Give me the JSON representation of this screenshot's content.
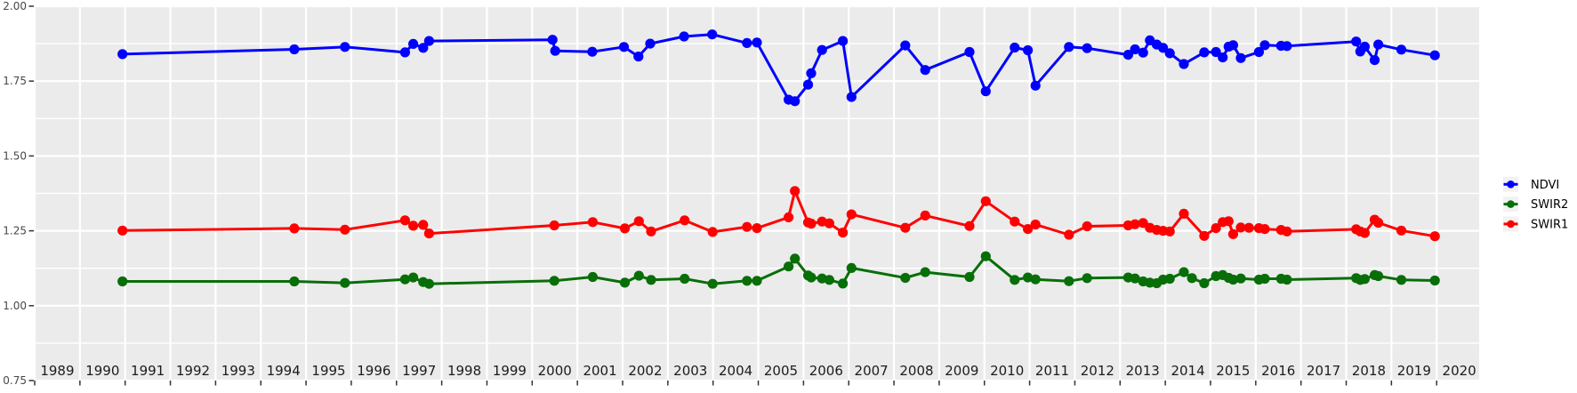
{
  "chart_data": {
    "type": "line",
    "title": "",
    "xlabel": "",
    "ylabel": "",
    "x_range": [
      1988.98,
      2020.94
    ],
    "y_range": [
      0.75,
      2.0
    ],
    "x_ticks_years": [
      1989,
      1990,
      1991,
      1992,
      1993,
      1994,
      1995,
      1996,
      1997,
      1998,
      1999,
      2000,
      2001,
      2002,
      2003,
      2004,
      2005,
      2006,
      2007,
      2008,
      2009,
      2010,
      2011,
      2012,
      2013,
      2014,
      2015,
      2016,
      2017,
      2018,
      2019,
      2020
    ],
    "x_tick_label_offset": 0.5,
    "y_ticks": [
      0.75,
      1.0,
      1.25,
      1.5,
      1.75,
      2.0
    ],
    "y_minor_ticks": [
      0.875,
      1.125,
      1.375,
      1.625,
      1.875
    ],
    "grid": true,
    "legend_position": "right",
    "panel_bg": "#ebebeb",
    "grid_color": "#ffffff",
    "tick_color": "#333333",
    "legend_key_bg": "#f2f2f2",
    "series": [
      {
        "name": "NDVI",
        "color": "#0000ff",
        "points": [
          [
            1990.94,
            1.84
          ],
          [
            1994.74,
            1.856
          ],
          [
            1995.86,
            1.864
          ],
          [
            1997.19,
            1.846
          ],
          [
            1997.37,
            1.874
          ],
          [
            1997.59,
            1.861
          ],
          [
            1997.72,
            1.884
          ],
          [
            2000.45,
            1.888
          ],
          [
            2000.51,
            1.851
          ],
          [
            2001.33,
            1.848
          ],
          [
            2002.03,
            1.864
          ],
          [
            2002.35,
            1.832
          ],
          [
            2002.61,
            1.875
          ],
          [
            2003.36,
            1.899
          ],
          [
            2003.98,
            1.906
          ],
          [
            2004.75,
            1.877
          ],
          [
            2004.97,
            1.879
          ],
          [
            2005.67,
            1.688
          ],
          [
            2005.81,
            1.683
          ],
          [
            2006.1,
            1.738
          ],
          [
            2006.17,
            1.776
          ],
          [
            2006.41,
            1.854
          ],
          [
            2006.87,
            1.884
          ],
          [
            2007.06,
            1.697
          ],
          [
            2008.25,
            1.869
          ],
          [
            2008.69,
            1.787
          ],
          [
            2009.67,
            1.847
          ],
          [
            2010.03,
            1.716
          ],
          [
            2010.67,
            1.862
          ],
          [
            2010.96,
            1.853
          ],
          [
            2011.13,
            1.735
          ],
          [
            2011.87,
            1.864
          ],
          [
            2012.27,
            1.86
          ],
          [
            2013.18,
            1.838
          ],
          [
            2013.33,
            1.856
          ],
          [
            2013.51,
            1.845
          ],
          [
            2013.66,
            1.886
          ],
          [
            2013.81,
            1.872
          ],
          [
            2013.95,
            1.861
          ],
          [
            2014.1,
            1.843
          ],
          [
            2014.41,
            1.807
          ],
          [
            2014.86,
            1.846
          ],
          [
            2015.12,
            1.847
          ],
          [
            2015.27,
            1.829
          ],
          [
            2015.4,
            1.865
          ],
          [
            2015.5,
            1.87
          ],
          [
            2015.67,
            1.827
          ],
          [
            2016.07,
            1.847
          ],
          [
            2016.2,
            1.87
          ],
          [
            2016.56,
            1.868
          ],
          [
            2016.69,
            1.867
          ],
          [
            2018.22,
            1.882
          ],
          [
            2018.31,
            1.849
          ],
          [
            2018.41,
            1.865
          ],
          [
            2018.63,
            1.82
          ],
          [
            2018.71,
            1.872
          ],
          [
            2019.22,
            1.855
          ],
          [
            2019.96,
            1.836
          ]
        ]
      },
      {
        "name": "SWIR2",
        "color": "#086e08",
        "points": [
          [
            1990.94,
            1.081
          ],
          [
            1994.74,
            1.081
          ],
          [
            1995.86,
            1.076
          ],
          [
            1997.19,
            1.088
          ],
          [
            1997.37,
            1.094
          ],
          [
            1997.59,
            1.079
          ],
          [
            1997.72,
            1.073
          ],
          [
            2000.49,
            1.083
          ],
          [
            2001.34,
            1.096
          ],
          [
            2002.05,
            1.077
          ],
          [
            2002.36,
            1.1
          ],
          [
            2002.63,
            1.086
          ],
          [
            2003.37,
            1.09
          ],
          [
            2003.99,
            1.073
          ],
          [
            2004.75,
            1.083
          ],
          [
            2004.97,
            1.083
          ],
          [
            2005.67,
            1.131
          ],
          [
            2005.81,
            1.157
          ],
          [
            2006.1,
            1.101
          ],
          [
            2006.17,
            1.094
          ],
          [
            2006.41,
            1.091
          ],
          [
            2006.57,
            1.086
          ],
          [
            2006.87,
            1.074
          ],
          [
            2007.06,
            1.126
          ],
          [
            2008.25,
            1.093
          ],
          [
            2008.69,
            1.112
          ],
          [
            2009.67,
            1.096
          ],
          [
            2010.03,
            1.165
          ],
          [
            2010.67,
            1.086
          ],
          [
            2010.96,
            1.094
          ],
          [
            2011.13,
            1.088
          ],
          [
            2011.87,
            1.082
          ],
          [
            2012.27,
            1.092
          ],
          [
            2013.18,
            1.094
          ],
          [
            2013.33,
            1.091
          ],
          [
            2013.51,
            1.081
          ],
          [
            2013.66,
            1.077
          ],
          [
            2013.81,
            1.075
          ],
          [
            2013.95,
            1.087
          ],
          [
            2014.1,
            1.09
          ],
          [
            2014.41,
            1.112
          ],
          [
            2014.59,
            1.092
          ],
          [
            2014.86,
            1.075
          ],
          [
            2015.12,
            1.099
          ],
          [
            2015.27,
            1.102
          ],
          [
            2015.4,
            1.093
          ],
          [
            2015.5,
            1.087
          ],
          [
            2015.67,
            1.091
          ],
          [
            2016.07,
            1.087
          ],
          [
            2016.2,
            1.09
          ],
          [
            2016.56,
            1.09
          ],
          [
            2016.69,
            1.087
          ],
          [
            2018.22,
            1.092
          ],
          [
            2018.31,
            1.086
          ],
          [
            2018.41,
            1.089
          ],
          [
            2018.63,
            1.102
          ],
          [
            2018.71,
            1.099
          ],
          [
            2019.22,
            1.086
          ],
          [
            2019.96,
            1.084
          ]
        ]
      },
      {
        "name": "SWIR1",
        "color": "#ff0000",
        "points": [
          [
            1990.94,
            1.251
          ],
          [
            1994.74,
            1.258
          ],
          [
            1995.86,
            1.254
          ],
          [
            1997.19,
            1.285
          ],
          [
            1997.37,
            1.267
          ],
          [
            1997.59,
            1.27
          ],
          [
            1997.72,
            1.241
          ],
          [
            2000.49,
            1.268
          ],
          [
            2001.34,
            1.279
          ],
          [
            2002.05,
            1.258
          ],
          [
            2002.36,
            1.282
          ],
          [
            2002.63,
            1.248
          ],
          [
            2003.37,
            1.285
          ],
          [
            2003.99,
            1.246
          ],
          [
            2004.75,
            1.263
          ],
          [
            2004.97,
            1.259
          ],
          [
            2005.67,
            1.295
          ],
          [
            2005.81,
            1.383
          ],
          [
            2006.1,
            1.278
          ],
          [
            2006.17,
            1.274
          ],
          [
            2006.41,
            1.281
          ],
          [
            2006.57,
            1.275
          ],
          [
            2006.87,
            1.244
          ],
          [
            2007.06,
            1.305
          ],
          [
            2008.25,
            1.26
          ],
          [
            2008.69,
            1.301
          ],
          [
            2009.67,
            1.266
          ],
          [
            2010.03,
            1.349
          ],
          [
            2010.67,
            1.281
          ],
          [
            2010.96,
            1.256
          ],
          [
            2011.13,
            1.271
          ],
          [
            2011.87,
            1.237
          ],
          [
            2012.27,
            1.265
          ],
          [
            2013.18,
            1.268
          ],
          [
            2013.33,
            1.272
          ],
          [
            2013.51,
            1.276
          ],
          [
            2013.66,
            1.26
          ],
          [
            2013.81,
            1.253
          ],
          [
            2013.95,
            1.25
          ],
          [
            2014.1,
            1.248
          ],
          [
            2014.41,
            1.307
          ],
          [
            2014.86,
            1.233
          ],
          [
            2015.12,
            1.259
          ],
          [
            2015.27,
            1.279
          ],
          [
            2015.4,
            1.282
          ],
          [
            2015.5,
            1.239
          ],
          [
            2015.67,
            1.261
          ],
          [
            2015.85,
            1.26
          ],
          [
            2016.07,
            1.259
          ],
          [
            2016.2,
            1.256
          ],
          [
            2016.56,
            1.253
          ],
          [
            2016.69,
            1.248
          ],
          [
            2018.22,
            1.255
          ],
          [
            2018.31,
            1.248
          ],
          [
            2018.41,
            1.243
          ],
          [
            2018.63,
            1.287
          ],
          [
            2018.71,
            1.277
          ],
          [
            2019.22,
            1.251
          ],
          [
            2019.96,
            1.232
          ]
        ]
      }
    ],
    "legend_entries": [
      "NDVI",
      "SWIR2",
      "SWIR1"
    ]
  }
}
